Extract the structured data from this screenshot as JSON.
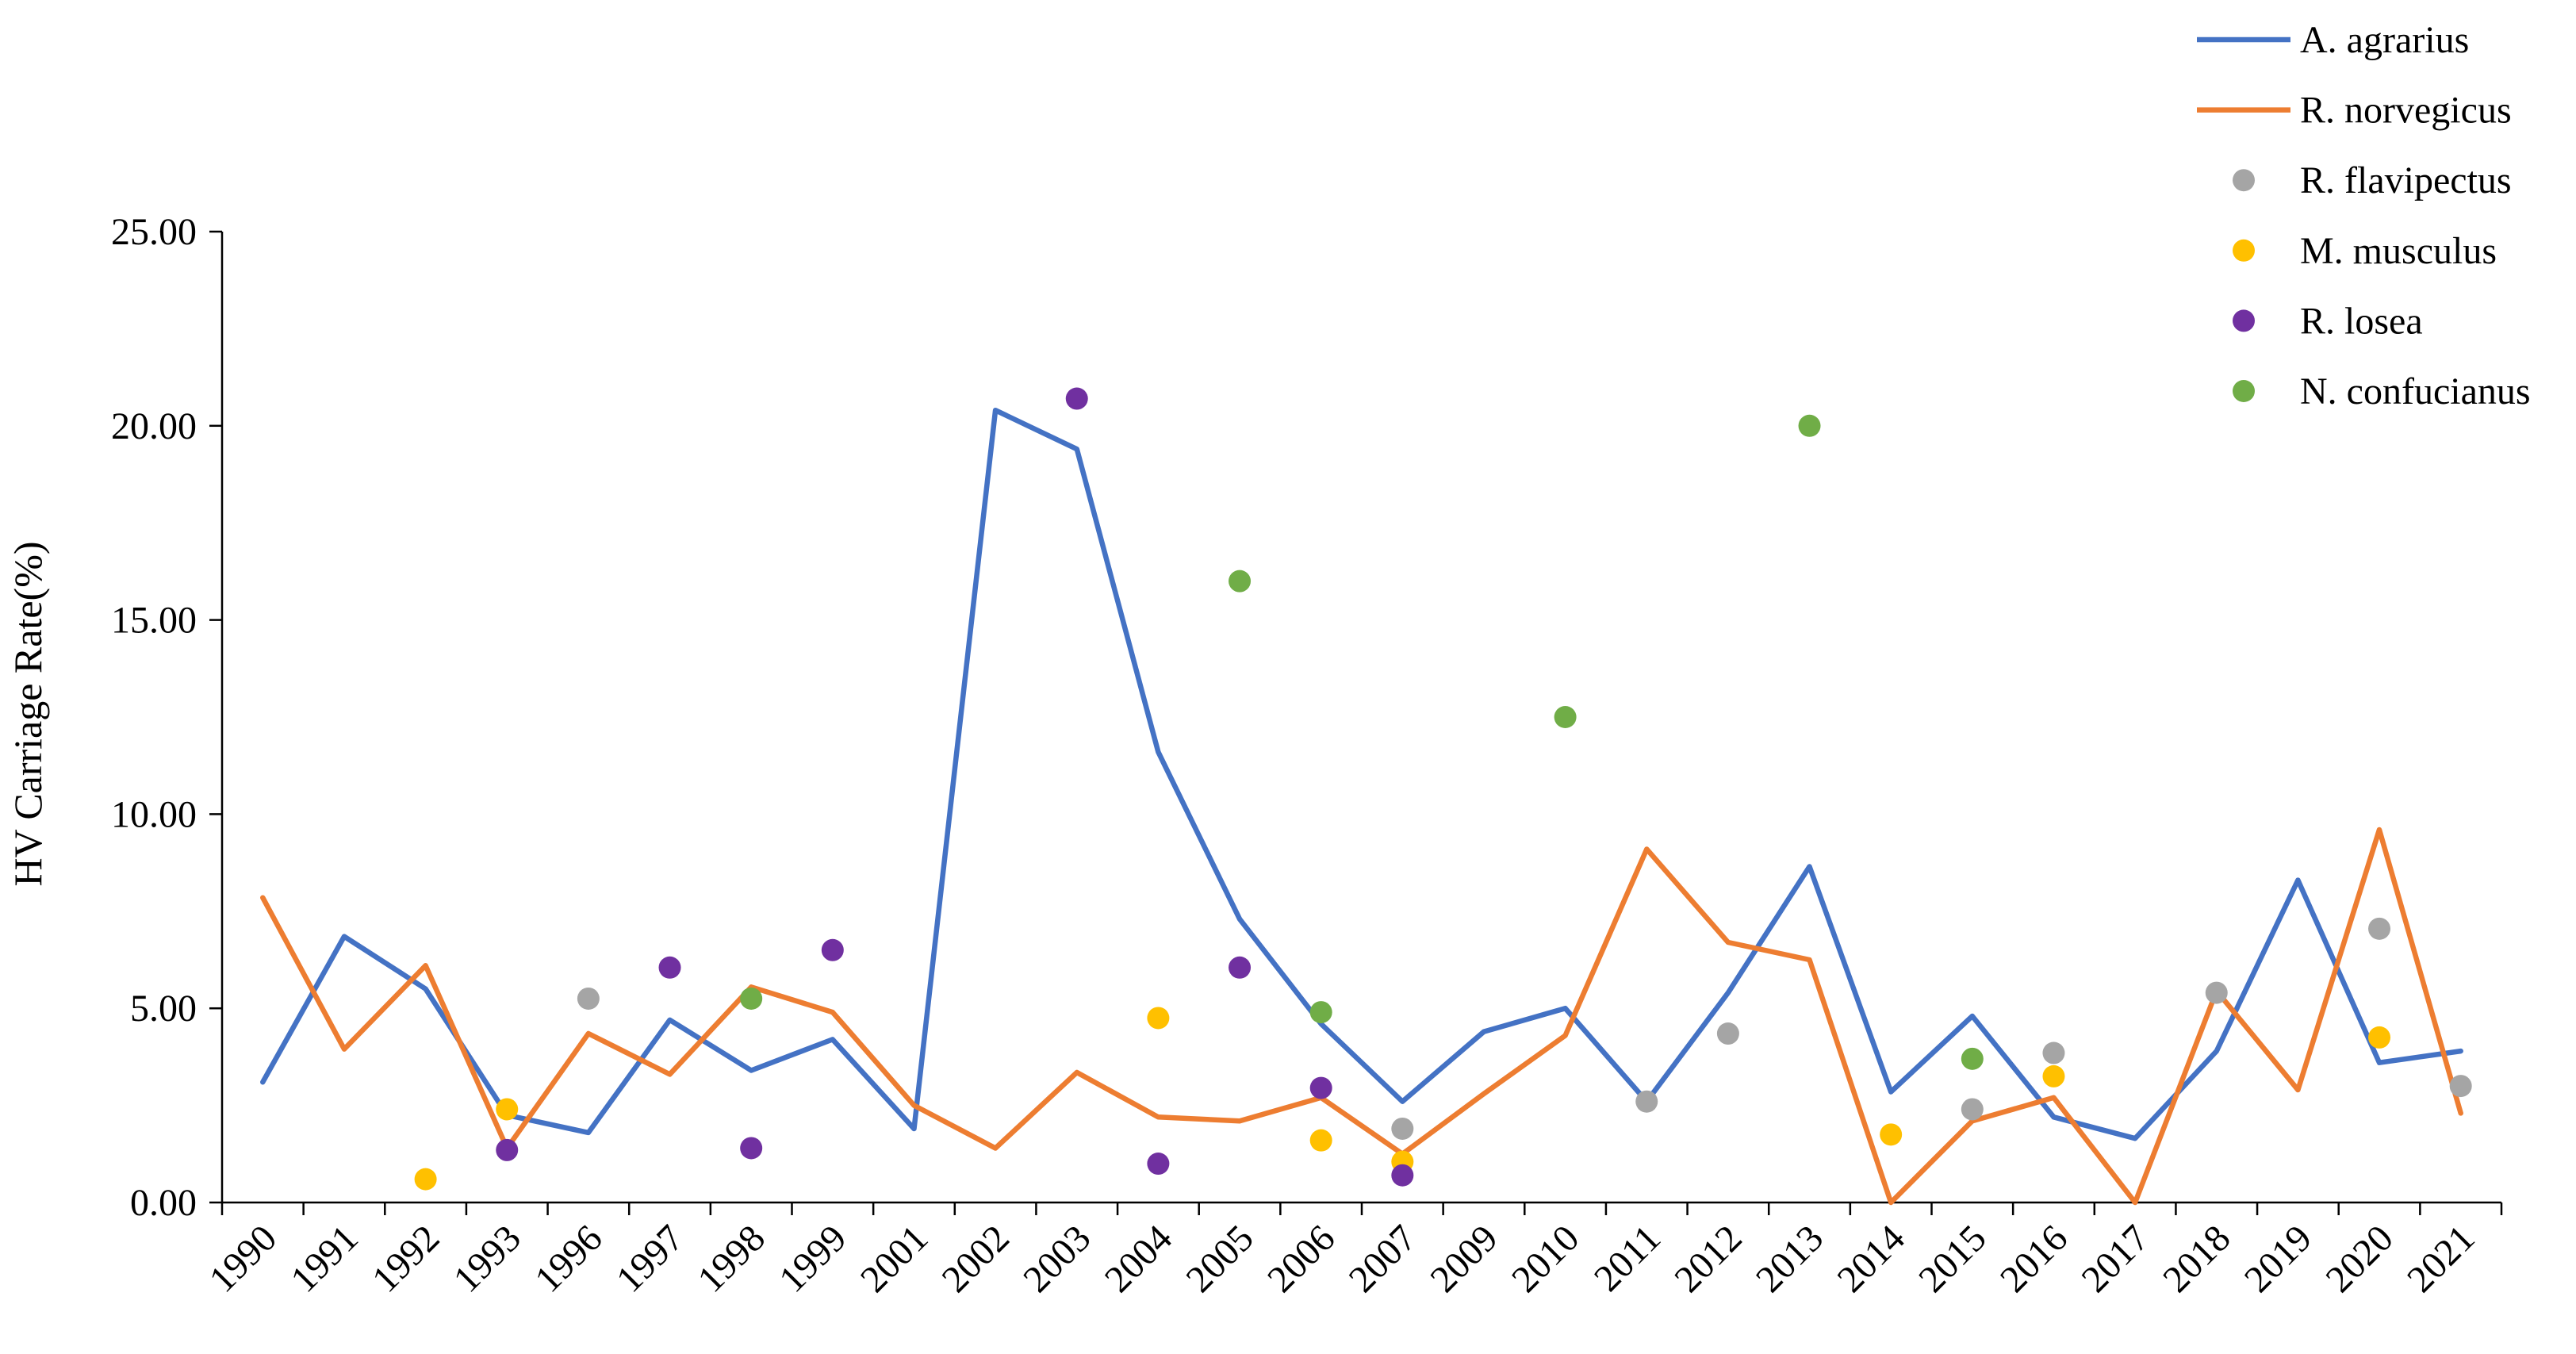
{
  "chart_data": {
    "type": "line",
    "title": "",
    "xlabel": "",
    "ylabel": "HV Carriage Rate(%)",
    "ylim": [
      0,
      25
    ],
    "y_ticks": [
      "0.00",
      "5.00",
      "10.00",
      "15.00",
      "20.00",
      "25.00"
    ],
    "grid": false,
    "legend_position": "top-right",
    "categories": [
      "1990",
      "1991",
      "1992",
      "1993",
      "1996",
      "1997",
      "1998",
      "1999",
      "2001",
      "2002",
      "2003",
      "2004",
      "2005",
      "2006",
      "2007",
      "2009",
      "2010",
      "2011",
      "2012",
      "2013",
      "2014",
      "2015",
      "2016",
      "2017",
      "2018",
      "2019",
      "2020",
      "2021"
    ],
    "series": [
      {
        "name": "A. agrarius",
        "kind": "line",
        "color": "#4472C4",
        "values": [
          3.1,
          6.85,
          5.5,
          2.25,
          1.8,
          4.7,
          3.4,
          4.2,
          1.9,
          20.4,
          19.4,
          11.6,
          7.3,
          4.6,
          2.6,
          4.4,
          5.0,
          2.6,
          5.4,
          8.65,
          2.85,
          4.8,
          2.2,
          1.65,
          3.9,
          8.3,
          3.6,
          3.9
        ]
      },
      {
        "name": "R. norvegicus",
        "kind": "line",
        "color": "#ED7D31",
        "values": [
          7.85,
          3.95,
          6.1,
          1.4,
          4.35,
          3.3,
          5.55,
          4.9,
          2.5,
          1.4,
          3.35,
          2.2,
          2.1,
          2.7,
          1.25,
          2.8,
          4.3,
          9.1,
          6.7,
          6.25,
          0.0,
          2.1,
          2.7,
          0.0,
          5.45,
          2.9,
          9.6,
          2.3
        ]
      },
      {
        "name": "R. flavipectus",
        "kind": "scatter",
        "color": "#A5A5A5",
        "values": [
          null,
          null,
          null,
          null,
          5.25,
          null,
          null,
          null,
          null,
          null,
          null,
          null,
          null,
          null,
          1.9,
          null,
          null,
          2.6,
          4.35,
          null,
          null,
          2.4,
          3.85,
          null,
          5.4,
          null,
          7.05,
          3.0
        ]
      },
      {
        "name": "M. musculus",
        "kind": "scatter",
        "color": "#FFC000",
        "values": [
          null,
          null,
          0.6,
          2.4,
          null,
          null,
          null,
          null,
          null,
          null,
          null,
          4.75,
          null,
          1.6,
          1.05,
          null,
          null,
          null,
          null,
          null,
          1.75,
          null,
          3.25,
          null,
          null,
          null,
          4.25,
          null
        ]
      },
      {
        "name": "R. losea",
        "kind": "scatter",
        "color": "#7030A0",
        "values": [
          null,
          null,
          null,
          1.35,
          null,
          6.05,
          1.4,
          6.5,
          null,
          null,
          20.7,
          1.0,
          6.05,
          2.95,
          0.7,
          null,
          null,
          null,
          null,
          null,
          null,
          null,
          null,
          null,
          null,
          null,
          null,
          null
        ]
      },
      {
        "name": "N. confucianus",
        "kind": "scatter",
        "color": "#70AD47",
        "values": [
          null,
          null,
          null,
          null,
          null,
          null,
          5.25,
          null,
          null,
          null,
          null,
          null,
          16.0,
          4.9,
          null,
          null,
          12.5,
          null,
          null,
          20.0,
          null,
          3.7,
          null,
          null,
          null,
          null,
          null,
          null
        ]
      }
    ]
  }
}
